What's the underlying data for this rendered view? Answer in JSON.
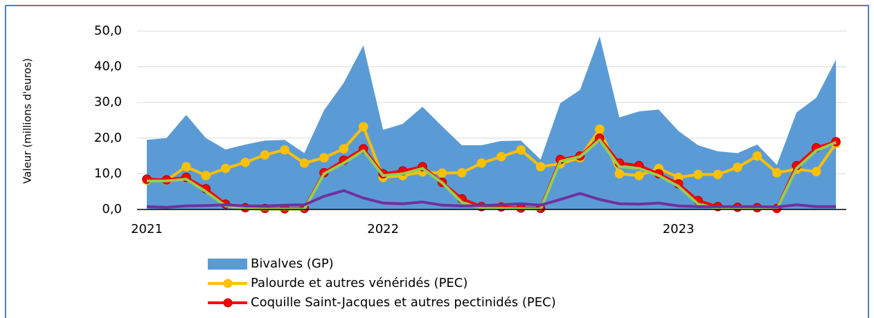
{
  "chart_data": {
    "type": "line",
    "ylabel": "Valeur (millions d'euros)",
    "categories": [
      "2021",
      null,
      null,
      null,
      null,
      null,
      null,
      null,
      null,
      null,
      null,
      null,
      "2022",
      null,
      null,
      null,
      null,
      null,
      null,
      null,
      null,
      null,
      null,
      null,
      null,
      null,
      null,
      "2023",
      null,
      null,
      null,
      null,
      null,
      null,
      null,
      null
    ],
    "ylim": [
      0,
      50
    ],
    "yticks": [
      {
        "value": 0,
        "label": "0,0"
      },
      {
        "value": 10,
        "label": "10,0"
      },
      {
        "value": 20,
        "label": "20,0"
      },
      {
        "value": 30,
        "label": "30,0"
      },
      {
        "value": 40,
        "label": "40,0"
      },
      {
        "value": 50,
        "label": "50,0"
      }
    ],
    "grid": true,
    "series": [
      {
        "name": "Bivalves (GP)",
        "kind": "area",
        "color": "#5b9bd5",
        "values": [
          19.5,
          20,
          26.5,
          20,
          16.8,
          18.2,
          19.3,
          19.5,
          15.8,
          27.8,
          35.5,
          46,
          22.3,
          24,
          28.8,
          23.3,
          18,
          18,
          19.2,
          19.3,
          14,
          29.8,
          33.5,
          48.5,
          25.8,
          27.5,
          28,
          22,
          18,
          16.3,
          15.8,
          18.2,
          12.5,
          27.2,
          31.3,
          42
        ]
      },
      {
        "name": "Palourde et autres vénéridés (PEC)",
        "kind": "line",
        "marker": true,
        "color": "#ffc000",
        "values": [
          8.2,
          8.2,
          12,
          9.5,
          11.5,
          13.2,
          15.3,
          16.7,
          13,
          14.5,
          17,
          23.2,
          9,
          9.5,
          10.5,
          10.2,
          10.3,
          13,
          14.8,
          16.7,
          12,
          12.8,
          14.5,
          22.5,
          10,
          9.5,
          11.5,
          9,
          9.8,
          9.8,
          11.8,
          15,
          10.3,
          11.3,
          10.6,
          18.5
        ]
      },
      {
        "name": "Coquille Saint-Jacques et autres pectinidés (PEC)",
        "kind": "line",
        "marker": true,
        "color": "#ff0000",
        "values": [
          8.5,
          8.3,
          9,
          5.8,
          1.5,
          0.5,
          0.3,
          0.2,
          0.3,
          10.3,
          13.8,
          17,
          10,
          10.8,
          12,
          7.6,
          3,
          0.8,
          0.7,
          0.4,
          0.3,
          14,
          15,
          20,
          13,
          12.3,
          10,
          7.2,
          2.5,
          0.8,
          0.6,
          0.5,
          0.3,
          12.3,
          17.3,
          19
        ]
      },
      {
        "kind": "line",
        "marker": false,
        "color": "#92d050",
        "values": [
          8,
          8,
          8.5,
          5,
          1,
          0.2,
          0.1,
          0.1,
          0.1,
          10,
          13,
          16.5,
          9.5,
          10,
          11.5,
          7.5,
          2,
          0.3,
          0.3,
          0.2,
          0.1,
          13.5,
          14.8,
          19.5,
          12,
          11.5,
          9.5,
          6.5,
          1.5,
          0.3,
          0.3,
          0.2,
          0.2,
          11.5,
          16.5,
          18.8
        ]
      },
      {
        "kind": "line",
        "marker": false,
        "color": "#7030a0",
        "values": [
          0.8,
          0.6,
          1,
          1.1,
          1.3,
          1,
          1,
          1.2,
          1.3,
          3.7,
          5.3,
          3.2,
          1.8,
          1.6,
          2.1,
          1.2,
          1,
          1.1,
          1.3,
          1.6,
          1.2,
          2.8,
          4.5,
          2.8,
          1.6,
          1.5,
          1.8,
          1,
          0.8,
          0.8,
          0.8,
          0.8,
          0.7,
          1.3,
          0.8,
          0.8
        ]
      }
    ]
  }
}
